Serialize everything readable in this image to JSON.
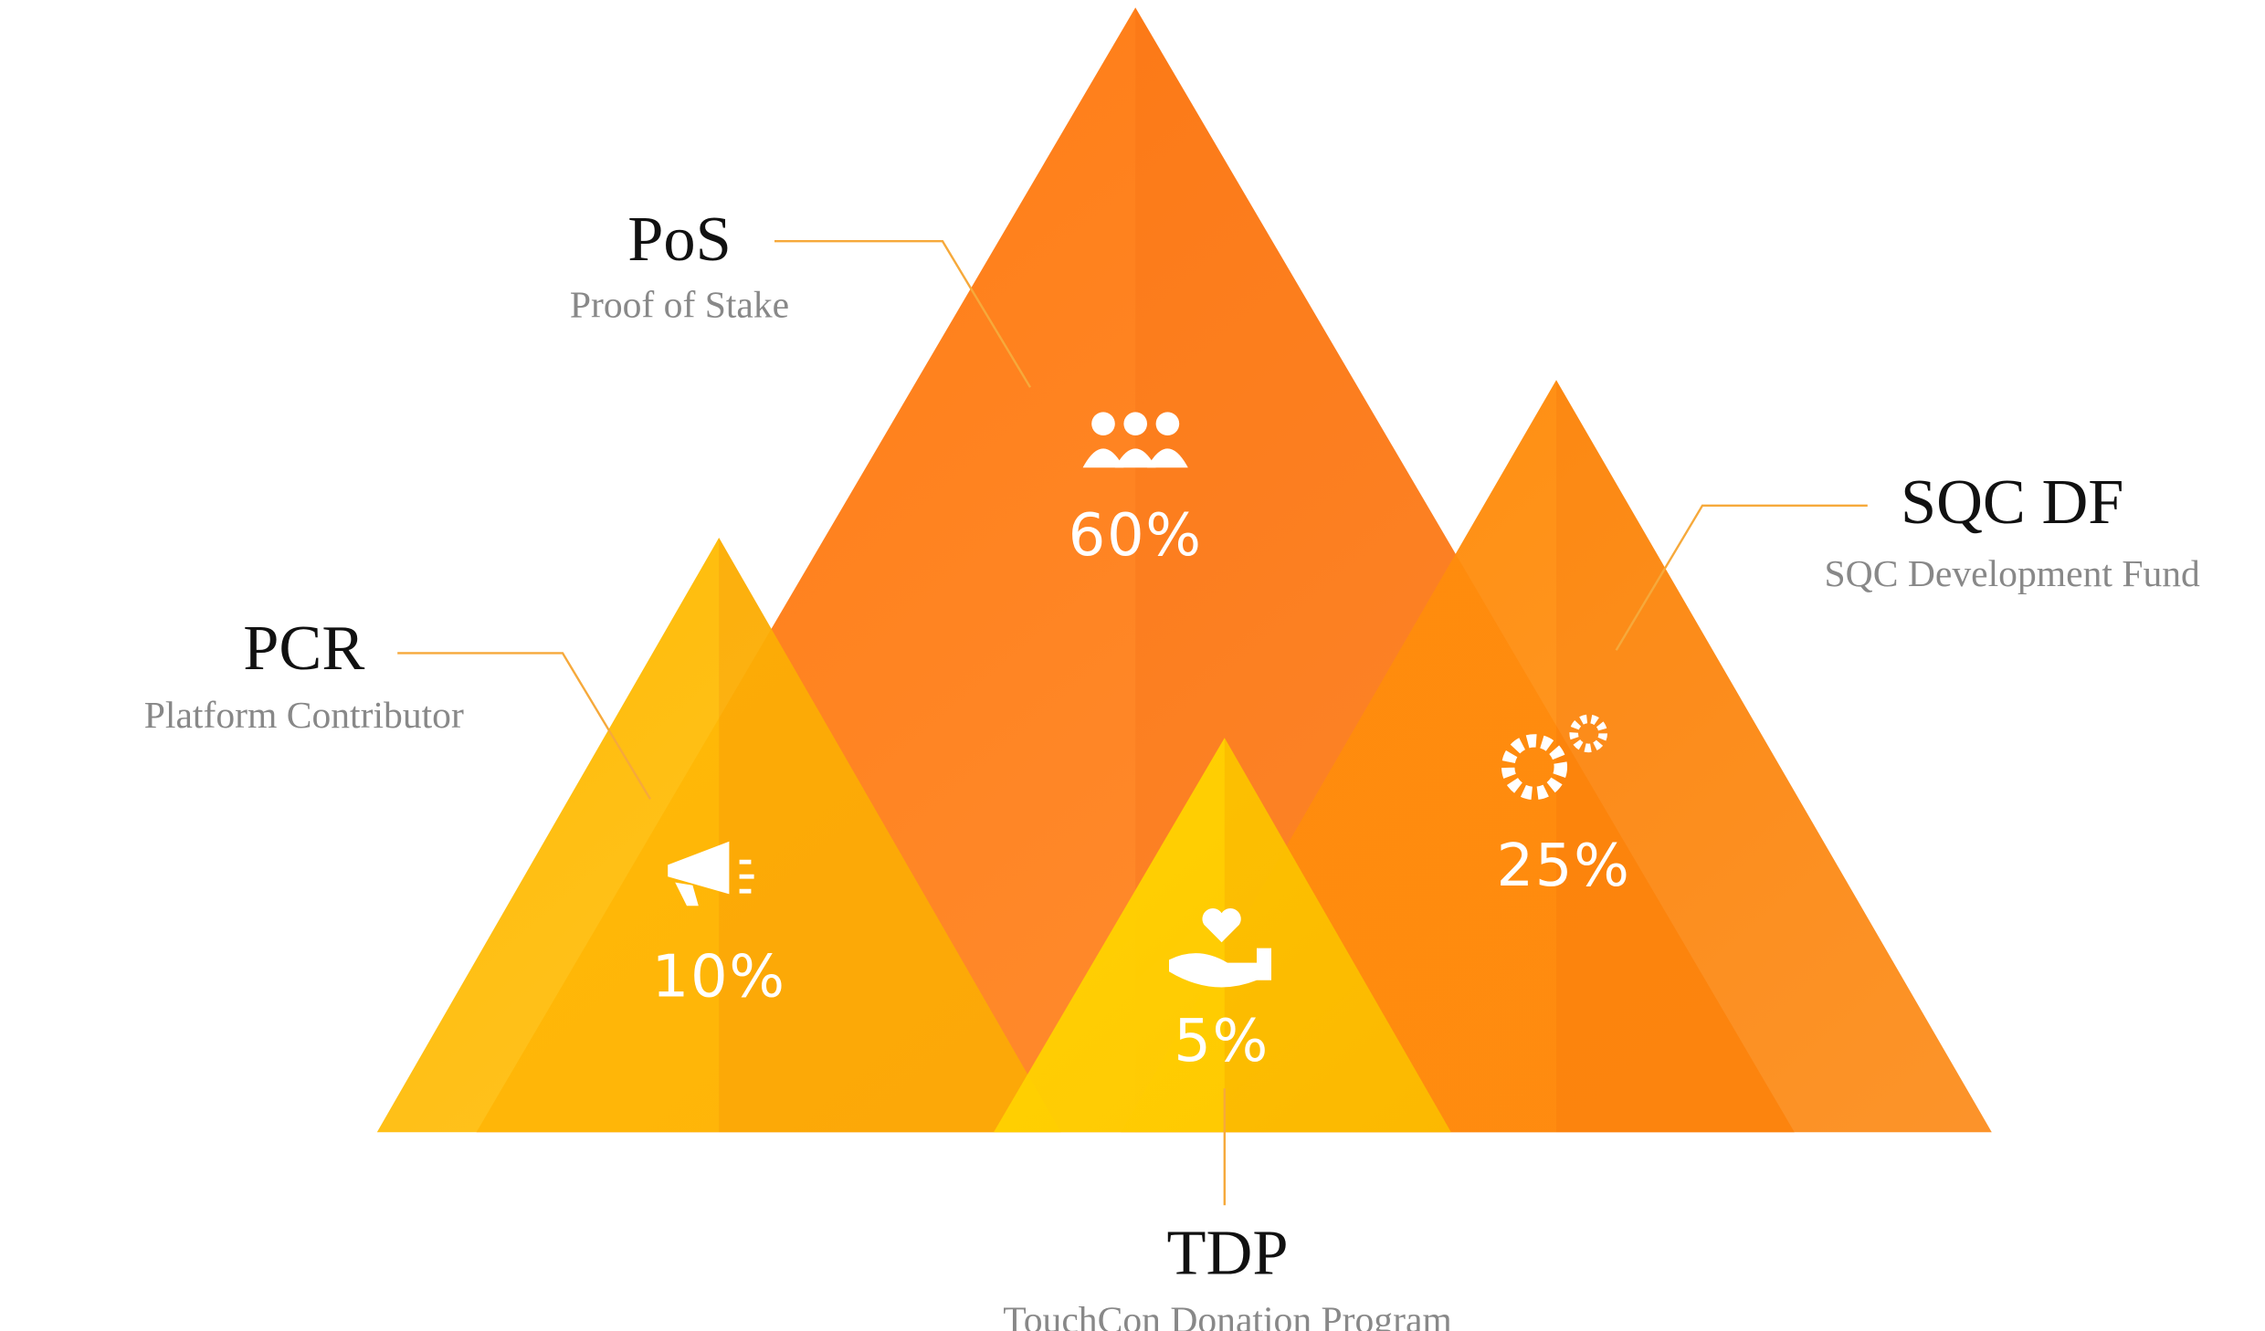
{
  "chart_data": {
    "type": "mountain",
    "categories": [
      "PoS",
      "PCR",
      "SQC DF",
      "TDP"
    ],
    "descriptions": [
      "Proof of Stake",
      "Platform Contributor",
      "SQC Development Fund",
      "TouchCon Donation Program"
    ],
    "values": [
      60,
      10,
      25,
      5
    ],
    "value_labels": [
      "60%",
      "10%",
      "25%",
      "5%"
    ],
    "colors": [
      "#ff7b12",
      "#ffbb05",
      "#ff8c0c",
      "#ffd200"
    ]
  }
}
